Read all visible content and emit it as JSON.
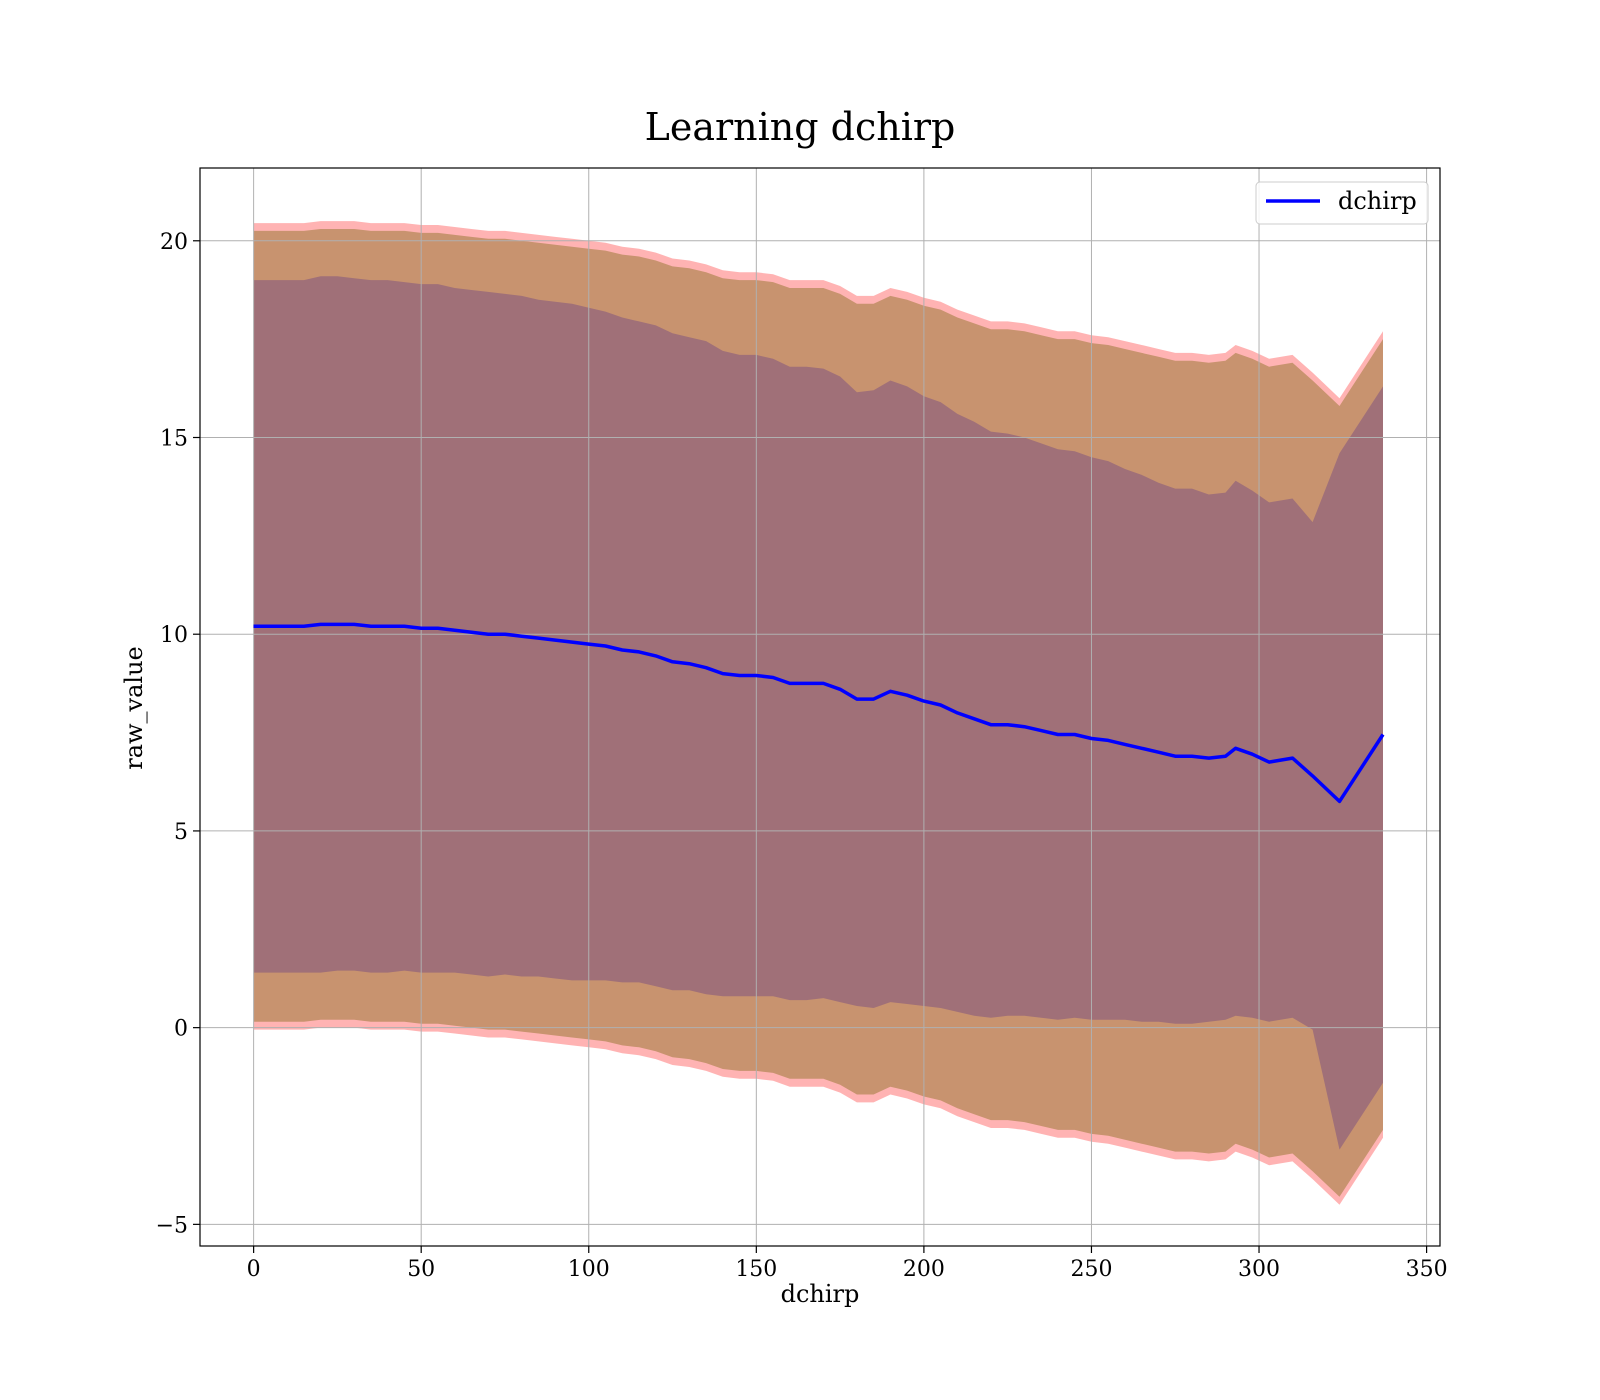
{
  "chart_data": {
    "type": "line",
    "title": "Learning dchirp",
    "xlabel": "dchirp",
    "ylabel": "raw_value",
    "xlim": [
      -16,
      354
    ],
    "ylim": [
      -5.55,
      21.85
    ],
    "xticks": [
      0,
      50,
      100,
      150,
      200,
      250,
      300,
      350
    ],
    "yticks": [
      -5,
      0,
      5,
      10,
      15,
      20
    ],
    "xtick_labels": [
      "0",
      "50",
      "100",
      "150",
      "200",
      "250",
      "300",
      "350"
    ],
    "ytick_labels": [
      "−5",
      "0",
      "5",
      "10",
      "15",
      "20"
    ],
    "grid": true,
    "legend_position": "top-right",
    "legend": [
      "dchirp"
    ],
    "x": [
      0,
      5,
      10,
      15,
      20,
      25,
      30,
      35,
      40,
      45,
      50,
      55,
      60,
      65,
      70,
      75,
      80,
      85,
      90,
      95,
      100,
      105,
      110,
      115,
      120,
      125,
      130,
      135,
      140,
      145,
      150,
      155,
      160,
      165,
      170,
      175,
      180,
      185,
      190,
      195,
      200,
      205,
      210,
      215,
      220,
      225,
      230,
      235,
      240,
      245,
      250,
      255,
      260,
      265,
      270,
      275,
      280,
      285,
      290,
      293,
      298,
      303,
      310,
      316,
      324,
      337
    ],
    "series": [
      {
        "name": "dchirp",
        "color": "#0000ff",
        "values": [
          10.2,
          10.2,
          10.2,
          10.2,
          10.25,
          10.25,
          10.25,
          10.2,
          10.2,
          10.2,
          10.15,
          10.15,
          10.1,
          10.05,
          10.0,
          10.0,
          9.95,
          9.9,
          9.85,
          9.8,
          9.75,
          9.7,
          9.6,
          9.55,
          9.45,
          9.3,
          9.25,
          9.15,
          9.0,
          8.95,
          8.95,
          8.9,
          8.75,
          8.75,
          8.75,
          8.6,
          8.35,
          8.35,
          8.55,
          8.45,
          8.3,
          8.2,
          8.0,
          7.85,
          7.7,
          7.7,
          7.65,
          7.55,
          7.45,
          7.45,
          7.35,
          7.3,
          7.2,
          7.1,
          7.0,
          6.9,
          6.9,
          6.85,
          6.9,
          7.1,
          6.95,
          6.75,
          6.85,
          6.4,
          5.75,
          7.45
        ]
      },
      {
        "name": "outer band upper",
        "color": "#ff9999",
        "values": [
          20.45,
          20.45,
          20.45,
          20.45,
          20.5,
          20.5,
          20.5,
          20.45,
          20.45,
          20.45,
          20.4,
          20.4,
          20.35,
          20.3,
          20.25,
          20.25,
          20.2,
          20.15,
          20.1,
          20.05,
          20.0,
          19.95,
          19.85,
          19.8,
          19.7,
          19.55,
          19.5,
          19.4,
          19.25,
          19.2,
          19.2,
          19.15,
          19.0,
          19.0,
          19.0,
          18.85,
          18.6,
          18.6,
          18.8,
          18.7,
          18.55,
          18.45,
          18.25,
          18.1,
          17.95,
          17.95,
          17.9,
          17.8,
          17.7,
          17.7,
          17.6,
          17.55,
          17.45,
          17.35,
          17.25,
          17.15,
          17.15,
          17.1,
          17.15,
          17.35,
          17.2,
          17.0,
          17.1,
          16.65,
          16.0,
          17.7
        ]
      },
      {
        "name": "outer band lower",
        "color": "#ff9999",
        "values": [
          -0.05,
          -0.05,
          -0.05,
          -0.05,
          0.0,
          0.0,
          0.0,
          -0.05,
          -0.05,
          -0.05,
          -0.1,
          -0.1,
          -0.15,
          -0.2,
          -0.25,
          -0.25,
          -0.3,
          -0.35,
          -0.4,
          -0.45,
          -0.5,
          -0.55,
          -0.65,
          -0.7,
          -0.8,
          -0.95,
          -1.0,
          -1.1,
          -1.25,
          -1.3,
          -1.3,
          -1.35,
          -1.5,
          -1.5,
          -1.5,
          -1.65,
          -1.9,
          -1.9,
          -1.7,
          -1.8,
          -1.95,
          -2.05,
          -2.25,
          -2.4,
          -2.55,
          -2.55,
          -2.6,
          -2.7,
          -2.8,
          -2.8,
          -2.9,
          -2.95,
          -3.05,
          -3.15,
          -3.25,
          -3.35,
          -3.35,
          -3.4,
          -3.35,
          -3.15,
          -3.3,
          -3.5,
          -3.4,
          -3.85,
          -4.5,
          -2.8
        ]
      },
      {
        "name": "middle band upper",
        "color": "#c8936f",
        "values": [
          20.25,
          20.25,
          20.25,
          20.25,
          20.3,
          20.3,
          20.3,
          20.25,
          20.25,
          20.25,
          20.2,
          20.2,
          20.15,
          20.1,
          20.05,
          20.05,
          20.0,
          19.95,
          19.9,
          19.85,
          19.8,
          19.75,
          19.65,
          19.6,
          19.5,
          19.35,
          19.3,
          19.2,
          19.05,
          19.0,
          19.0,
          18.95,
          18.8,
          18.8,
          18.8,
          18.65,
          18.4,
          18.4,
          18.6,
          18.5,
          18.35,
          18.25,
          18.05,
          17.9,
          17.75,
          17.75,
          17.7,
          17.6,
          17.5,
          17.5,
          17.4,
          17.35,
          17.25,
          17.15,
          17.05,
          16.95,
          16.95,
          16.9,
          16.95,
          17.15,
          17.0,
          16.8,
          16.9,
          16.45,
          15.8,
          17.5
        ]
      },
      {
        "name": "middle band lower",
        "color": "#c8936f",
        "values": [
          0.15,
          0.15,
          0.15,
          0.15,
          0.2,
          0.2,
          0.2,
          0.15,
          0.15,
          0.15,
          0.1,
          0.1,
          0.05,
          0.0,
          -0.05,
          -0.05,
          -0.1,
          -0.15,
          -0.2,
          -0.25,
          -0.3,
          -0.35,
          -0.45,
          -0.5,
          -0.6,
          -0.75,
          -0.8,
          -0.9,
          -1.05,
          -1.1,
          -1.1,
          -1.15,
          -1.3,
          -1.3,
          -1.3,
          -1.45,
          -1.7,
          -1.7,
          -1.5,
          -1.6,
          -1.75,
          -1.85,
          -2.05,
          -2.2,
          -2.35,
          -2.35,
          -2.4,
          -2.5,
          -2.6,
          -2.6,
          -2.7,
          -2.75,
          -2.85,
          -2.95,
          -3.05,
          -3.15,
          -3.15,
          -3.2,
          -3.15,
          -2.95,
          -3.1,
          -3.3,
          -3.2,
          -3.65,
          -4.3,
          -2.6
        ]
      },
      {
        "name": "inner band upper",
        "color": "#a07078",
        "values": [
          19.0,
          19.0,
          19.0,
          19.0,
          19.1,
          19.1,
          19.05,
          19.0,
          19.0,
          18.95,
          18.9,
          18.9,
          18.8,
          18.75,
          18.7,
          18.65,
          18.6,
          18.5,
          18.45,
          18.4,
          18.3,
          18.2,
          18.05,
          17.95,
          17.85,
          17.65,
          17.55,
          17.45,
          17.2,
          17.1,
          17.1,
          17.0,
          16.8,
          16.8,
          16.75,
          16.55,
          16.15,
          16.2,
          16.45,
          16.3,
          16.05,
          15.9,
          15.6,
          15.4,
          15.15,
          15.1,
          15.0,
          14.85,
          14.7,
          14.65,
          14.5,
          14.4,
          14.2,
          14.05,
          13.85,
          13.7,
          13.7,
          13.55,
          13.6,
          13.9,
          13.65,
          13.35,
          13.45,
          12.85,
          14.6,
          16.3
        ]
      },
      {
        "name": "inner band lower",
        "color": "#a07078",
        "values": [
          1.4,
          1.4,
          1.4,
          1.4,
          1.4,
          1.45,
          1.45,
          1.4,
          1.4,
          1.45,
          1.4,
          1.4,
          1.4,
          1.35,
          1.3,
          1.35,
          1.3,
          1.3,
          1.25,
          1.2,
          1.2,
          1.2,
          1.15,
          1.15,
          1.05,
          0.95,
          0.95,
          0.85,
          0.8,
          0.8,
          0.8,
          0.8,
          0.7,
          0.7,
          0.75,
          0.65,
          0.55,
          0.5,
          0.65,
          0.6,
          0.55,
          0.5,
          0.4,
          0.3,
          0.25,
          0.3,
          0.3,
          0.25,
          0.2,
          0.25,
          0.2,
          0.2,
          0.2,
          0.15,
          0.15,
          0.1,
          0.1,
          0.15,
          0.2,
          0.3,
          0.25,
          0.15,
          0.25,
          -0.05,
          -3.1,
          -1.4
        ]
      }
    ]
  }
}
